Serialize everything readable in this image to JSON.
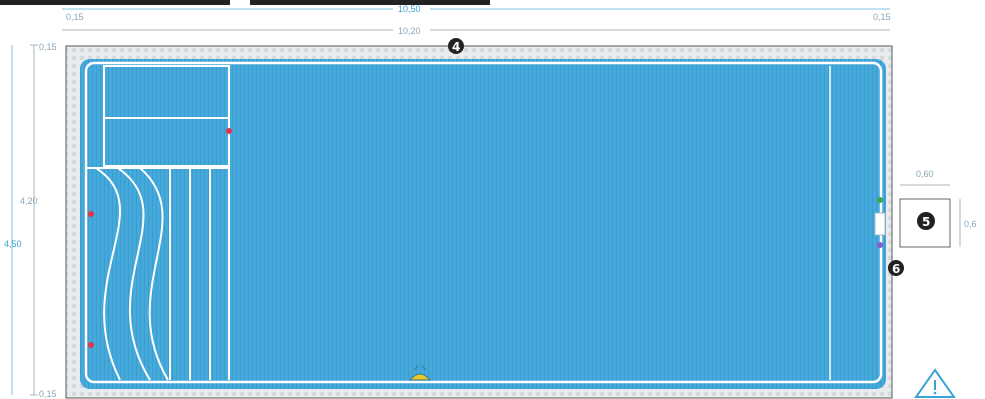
{
  "dimensions": {
    "top_total": "10,50",
    "top_inner": "10,20",
    "top_left_margin": "0,15",
    "top_right_margin": "0,15",
    "left_top_margin": "0,15",
    "left_inner": "4,20",
    "left_total": "4,50",
    "left_bottom_margin": "0,15",
    "box_width": "0,60",
    "box_height": "0,6"
  },
  "markers": {
    "m4": "4",
    "m5": "5",
    "m6": "6"
  },
  "colors": {
    "water": "#45a9dc",
    "water_dark": "#3b9ccf",
    "outline": "#ffffff",
    "coping": "#dfe3e6",
    "dim_line": "#8aa6b8",
    "dim_accent": "#3aa3d6",
    "dot_red": "#e8324a",
    "dot_green": "#3aa84a",
    "dot_purple": "#8a5ad0",
    "skimmer": "#e8c62a",
    "warning": "#3aa3d6"
  },
  "icons": [
    "warning-triangle-icon",
    "skimmer-icon",
    "light-dot-icon"
  ]
}
